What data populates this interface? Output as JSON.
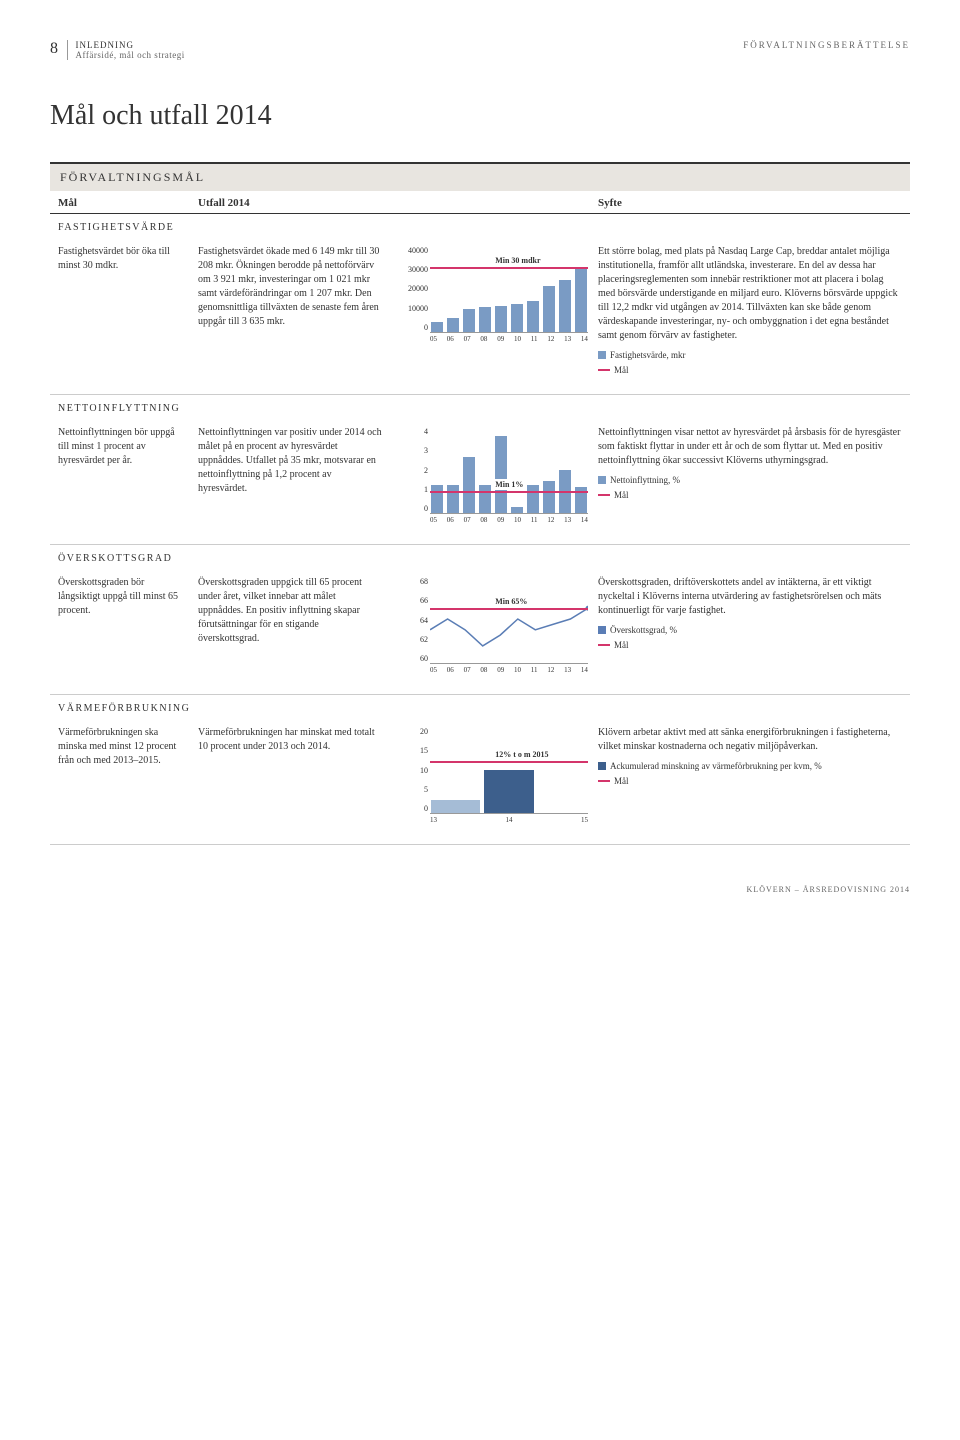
{
  "header": {
    "page_num": "8",
    "section": "INLEDNING",
    "subsection": "Affärsidé, mål och strategi",
    "right": "FÖRVALTNINGSBERÄTTELSE"
  },
  "title": "Mål och utfall 2014",
  "section_band": "FÖRVALTNINGSMÅL",
  "tbl_cols": {
    "c1": "Mål",
    "c2": "Utfall 2014",
    "c4": "Syfte"
  },
  "rows": {
    "fastighet": {
      "label": "FASTIGHETSVÄRDE",
      "goal": "Fastighetsvärdet bör öka till minst 30 mdkr.",
      "result": "Fastighetsvärdet ökade med 6 149 mkr till 30 208 mkr. Ökningen berodde på nettoförvärv om 3 921 mkr, investeringar om 1 021 mkr samt värdeförändringar om 1 207 mkr. Den genomsnittliga tillväxten de senaste fem åren uppgår till 3 635 mkr.",
      "purpose": "Ett större bolag, med plats på Nasdaq Large Cap, breddar antalet möjliga institutionella, framför allt utländska, investerare. En del av dessa har placeringsreglementen som innebär restriktioner mot att placera i bolag med börsvärde understigande en miljard euro. Klöverns börsvärde uppgick till 12,2 mdkr vid utgången av 2014. Tillväxten kan ske både genom värdeskapande investeringar, ny- och ombyggnation i det egna beståndet samt genom förvärv av fastigheter.",
      "legend1": "Fastighetsvärde, mkr",
      "legend2": "Mål",
      "chart": {
        "type": "bar",
        "yticks": [
          "40000",
          "30000",
          "20000",
          "10000",
          "0"
        ],
        "xlabels": [
          "05",
          "06",
          "07",
          "08",
          "09",
          "10",
          "11",
          "12",
          "13",
          "14"
        ],
        "values": [
          4500,
          6500,
          10500,
          11500,
          12000,
          13000,
          14500,
          21500,
          24000,
          30200
        ],
        "ymax": 40000,
        "bar_color": "#7a9bc4",
        "target_value": 30000,
        "target_color": "#d4356b",
        "target_label": "Min 30 mdkr"
      }
    },
    "netto": {
      "label": "NETTOINFLYTTNING",
      "goal": "Nettoinflyttningen bör uppgå till minst 1 procent av hyresvärdet per år.",
      "result": "Nettoinflyttningen var positiv under 2014 och målet på en procent av hyresvärdet uppnåddes. Utfallet på 35 mkr, motsvarar en nettoinflyttning på 1,2 procent av hyresvärdet.",
      "purpose": "Nettoinflyttningen visar nettot av hyresvärdet på årsbasis för de hyresgäster som faktiskt flyttar in under ett år och de som flyttar ut. Med en positiv nettoinflyttning ökar successivt Klöverns uthyrningsgrad.",
      "legend1": "Nettoinflyttning, %",
      "legend2": "Mål",
      "chart": {
        "type": "bar",
        "yticks": [
          "4",
          "3",
          "2",
          "1",
          "0"
        ],
        "xlabels": [
          "05",
          "06",
          "07",
          "08",
          "09",
          "10",
          "11",
          "12",
          "13",
          "14"
        ],
        "values": [
          1.3,
          1.3,
          2.6,
          1.3,
          3.6,
          0.3,
          1.3,
          1.5,
          2.0,
          1.2
        ],
        "ymax": 4,
        "bar_color": "#7a9bc4",
        "target_value": 1,
        "target_color": "#d4356b",
        "target_label": "Min 1%"
      }
    },
    "overskott": {
      "label": "ÖVERSKOTTSGRAD",
      "goal": "Överskottsgraden bör långsiktigt uppgå till minst 65 procent.",
      "result": "Överskottsgraden uppgick till 65 procent under året, vilket innebar att målet uppnåddes. En positiv inflyttning skapar förutsättningar för en stigande överskottsgrad.",
      "purpose": "Överskottsgraden, driftöverskottets andel av intäkterna, är ett viktigt nyckeltal i Klöverns interna utvärdering av fastighetsrörelsen och mäts kontinuerligt för varje fastighet.",
      "legend1": "Överskottsgrad, %",
      "legend2": "Mål",
      "chart": {
        "type": "line",
        "yticks": [
          "68",
          "66",
          "64",
          "62",
          "60"
        ],
        "xlabels": [
          "05",
          "06",
          "07",
          "08",
          "09",
          "10",
          "11",
          "12",
          "13",
          "14"
        ],
        "values": [
          63,
          64,
          63,
          61.5,
          62.5,
          64,
          63,
          63.5,
          64,
          65
        ],
        "ymin": 60,
        "ymax": 68,
        "line_color": "#5a7db5",
        "target_value": 65,
        "target_color": "#d4356b",
        "target_label": "Min 65%"
      }
    },
    "varme": {
      "label": "VÄRMEFÖRBRUKNING",
      "goal": "Värmeförbrukningen ska minska med minst 12 procent från och med 2013–2015.",
      "result": "Värmeförbrukningen har minskat med totalt 10 procent under 2013 och 2014.",
      "purpose": "Klövern arbetar aktivt med att sänka energiförbrukningen i fastigheterna, vilket minskar kostnaderna och negativ miljöpåverkan.",
      "legend1": "Ackumulerad minskning av värmeförbrukning per kvm, %",
      "legend2": "Mål",
      "chart": {
        "type": "bar",
        "yticks": [
          "20",
          "15",
          "10",
          "5",
          "0"
        ],
        "xlabels": [
          "13",
          "14",
          "15"
        ],
        "values": [
          3,
          10,
          0
        ],
        "ymax": 20,
        "bar_colors": [
          "#a5bcd6",
          "#3d5f8c",
          ""
        ],
        "target_value": 12,
        "target_color": "#d4356b",
        "target_label": "12% t o m 2015"
      }
    }
  },
  "footer": "KLÖVERN – ÅRSREDOVISNING 2014"
}
